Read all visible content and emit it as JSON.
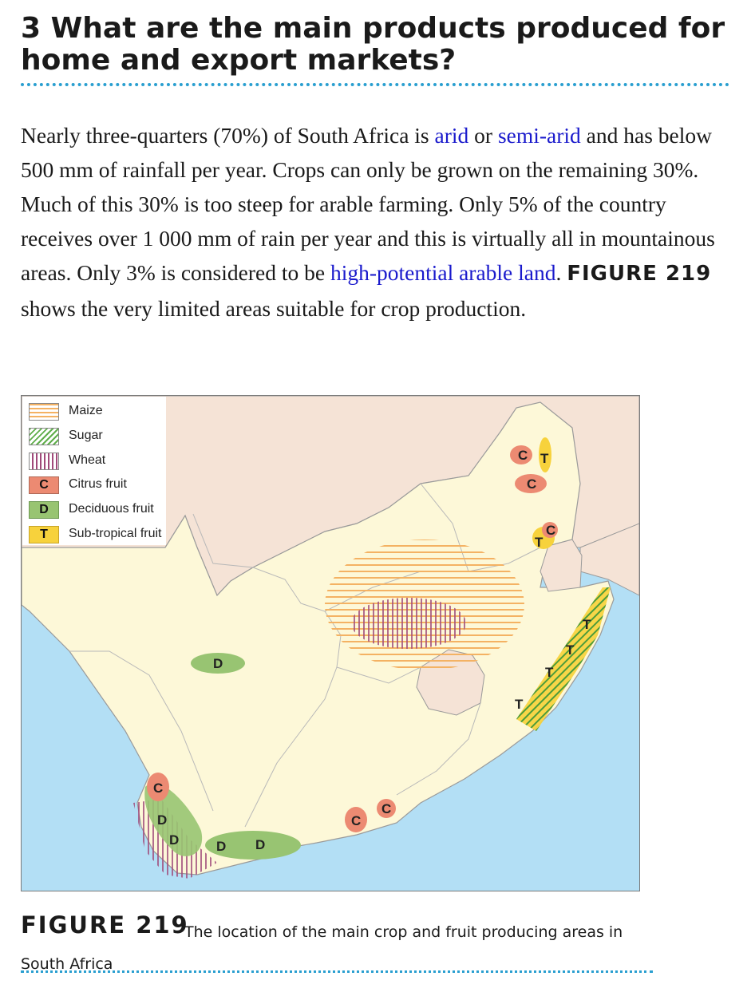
{
  "heading": {
    "line1": "3 What are the main products produced for",
    "line2": "home and export markets?"
  },
  "intro": {
    "t1": "Nearly three-quarters (70%) of South Africa is ",
    "link_arid": "arid",
    "t2": " or ",
    "link_semiarid": "semi-arid",
    "t3": " and has below 500 mm of rainfall per year. Crops can only be grown on the remaining 30%. Much of this 30% is too steep for arable farming. Only 5% of the country receives over 1 000 mm of rain per year and this is virtually all in mountainous areas. Only 3% is considered to be ",
    "link_highpotential": "high-potential arable land",
    "t4": ". ",
    "figure_ref": "FIGURE 219",
    "t5": " shows the very limited areas suitable for crop production."
  },
  "legend": {
    "items": [
      {
        "swatch": "",
        "label": "Maize"
      },
      {
        "swatch": "",
        "label": "Sugar"
      },
      {
        "swatch": "",
        "label": "Wheat"
      },
      {
        "swatch": "C",
        "label": "Citrus fruit"
      },
      {
        "swatch": "D",
        "label": "Deciduous fruit"
      },
      {
        "swatch": "T",
        "label": "Sub-tropical fruit"
      }
    ]
  },
  "map_labels": {
    "citrus": "C",
    "deciduous": "D",
    "subtropical": "T"
  },
  "colors": {
    "sea": "#b3dff5",
    "land_sa": "#fdf8d8",
    "land_neighbours": "#f5e3d6",
    "maize": "#f4b263",
    "sugar": "#5fae4a",
    "wheat": "#a04a7a",
    "citrus": "#ec8a72",
    "deciduous": "#98c472",
    "subtropical": "#f7d23c",
    "rule": "#2a9fd0"
  },
  "caption": {
    "figure": "FIGURE 219",
    "text": "The location of the main crop and fruit producing areas in South Africa"
  }
}
